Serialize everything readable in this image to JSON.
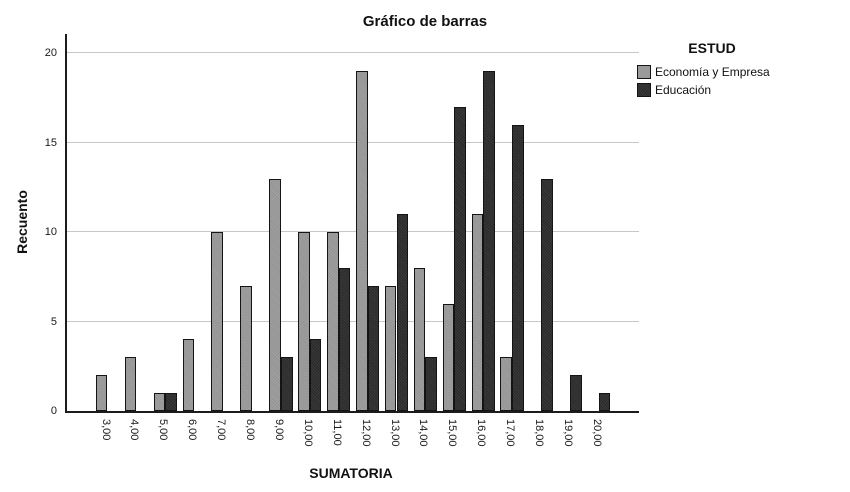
{
  "chart": {
    "title": "Gráfico de barras",
    "ylabel": "Recuento",
    "xlabel": "SUMATORIA",
    "legend": {
      "title": "ESTUD",
      "items": [
        {
          "label": "Economía y Empresa",
          "color": "#9a9a9a"
        },
        {
          "label": "Educación",
          "color": "#2b2b2b"
        }
      ]
    }
  },
  "chart_data": {
    "type": "bar",
    "title": "Gráfico de barras",
    "xlabel": "SUMATORIA",
    "ylabel": "Recuento",
    "categories": [
      "3,00",
      "4,00",
      "5,00",
      "6,00",
      "7,00",
      "8,00",
      "9,00",
      "10,00",
      "11,00",
      "12,00",
      "13,00",
      "14,00",
      "15,00",
      "16,00",
      "17,00",
      "18,00",
      "19,00",
      "20,00"
    ],
    "series": [
      {
        "name": "Economía y Empresa",
        "color": "#9a9a9a",
        "values": [
          2,
          3,
          1,
          4,
          10,
          7,
          13,
          10,
          10,
          19,
          7,
          8,
          6,
          11,
          3,
          0,
          0,
          0
        ]
      },
      {
        "name": "Educación",
        "color": "#2b2b2b",
        "values": [
          0,
          0,
          1,
          0,
          0,
          0,
          3,
          4,
          8,
          7,
          11,
          3,
          17,
          19,
          16,
          13,
          2,
          1
        ]
      }
    ],
    "yticks": [
      0,
      5,
      10,
      15,
      20
    ],
    "ylim": [
      0,
      21
    ],
    "grid": true,
    "gridline_color": "#c7c7c7",
    "legend_position": "right"
  }
}
